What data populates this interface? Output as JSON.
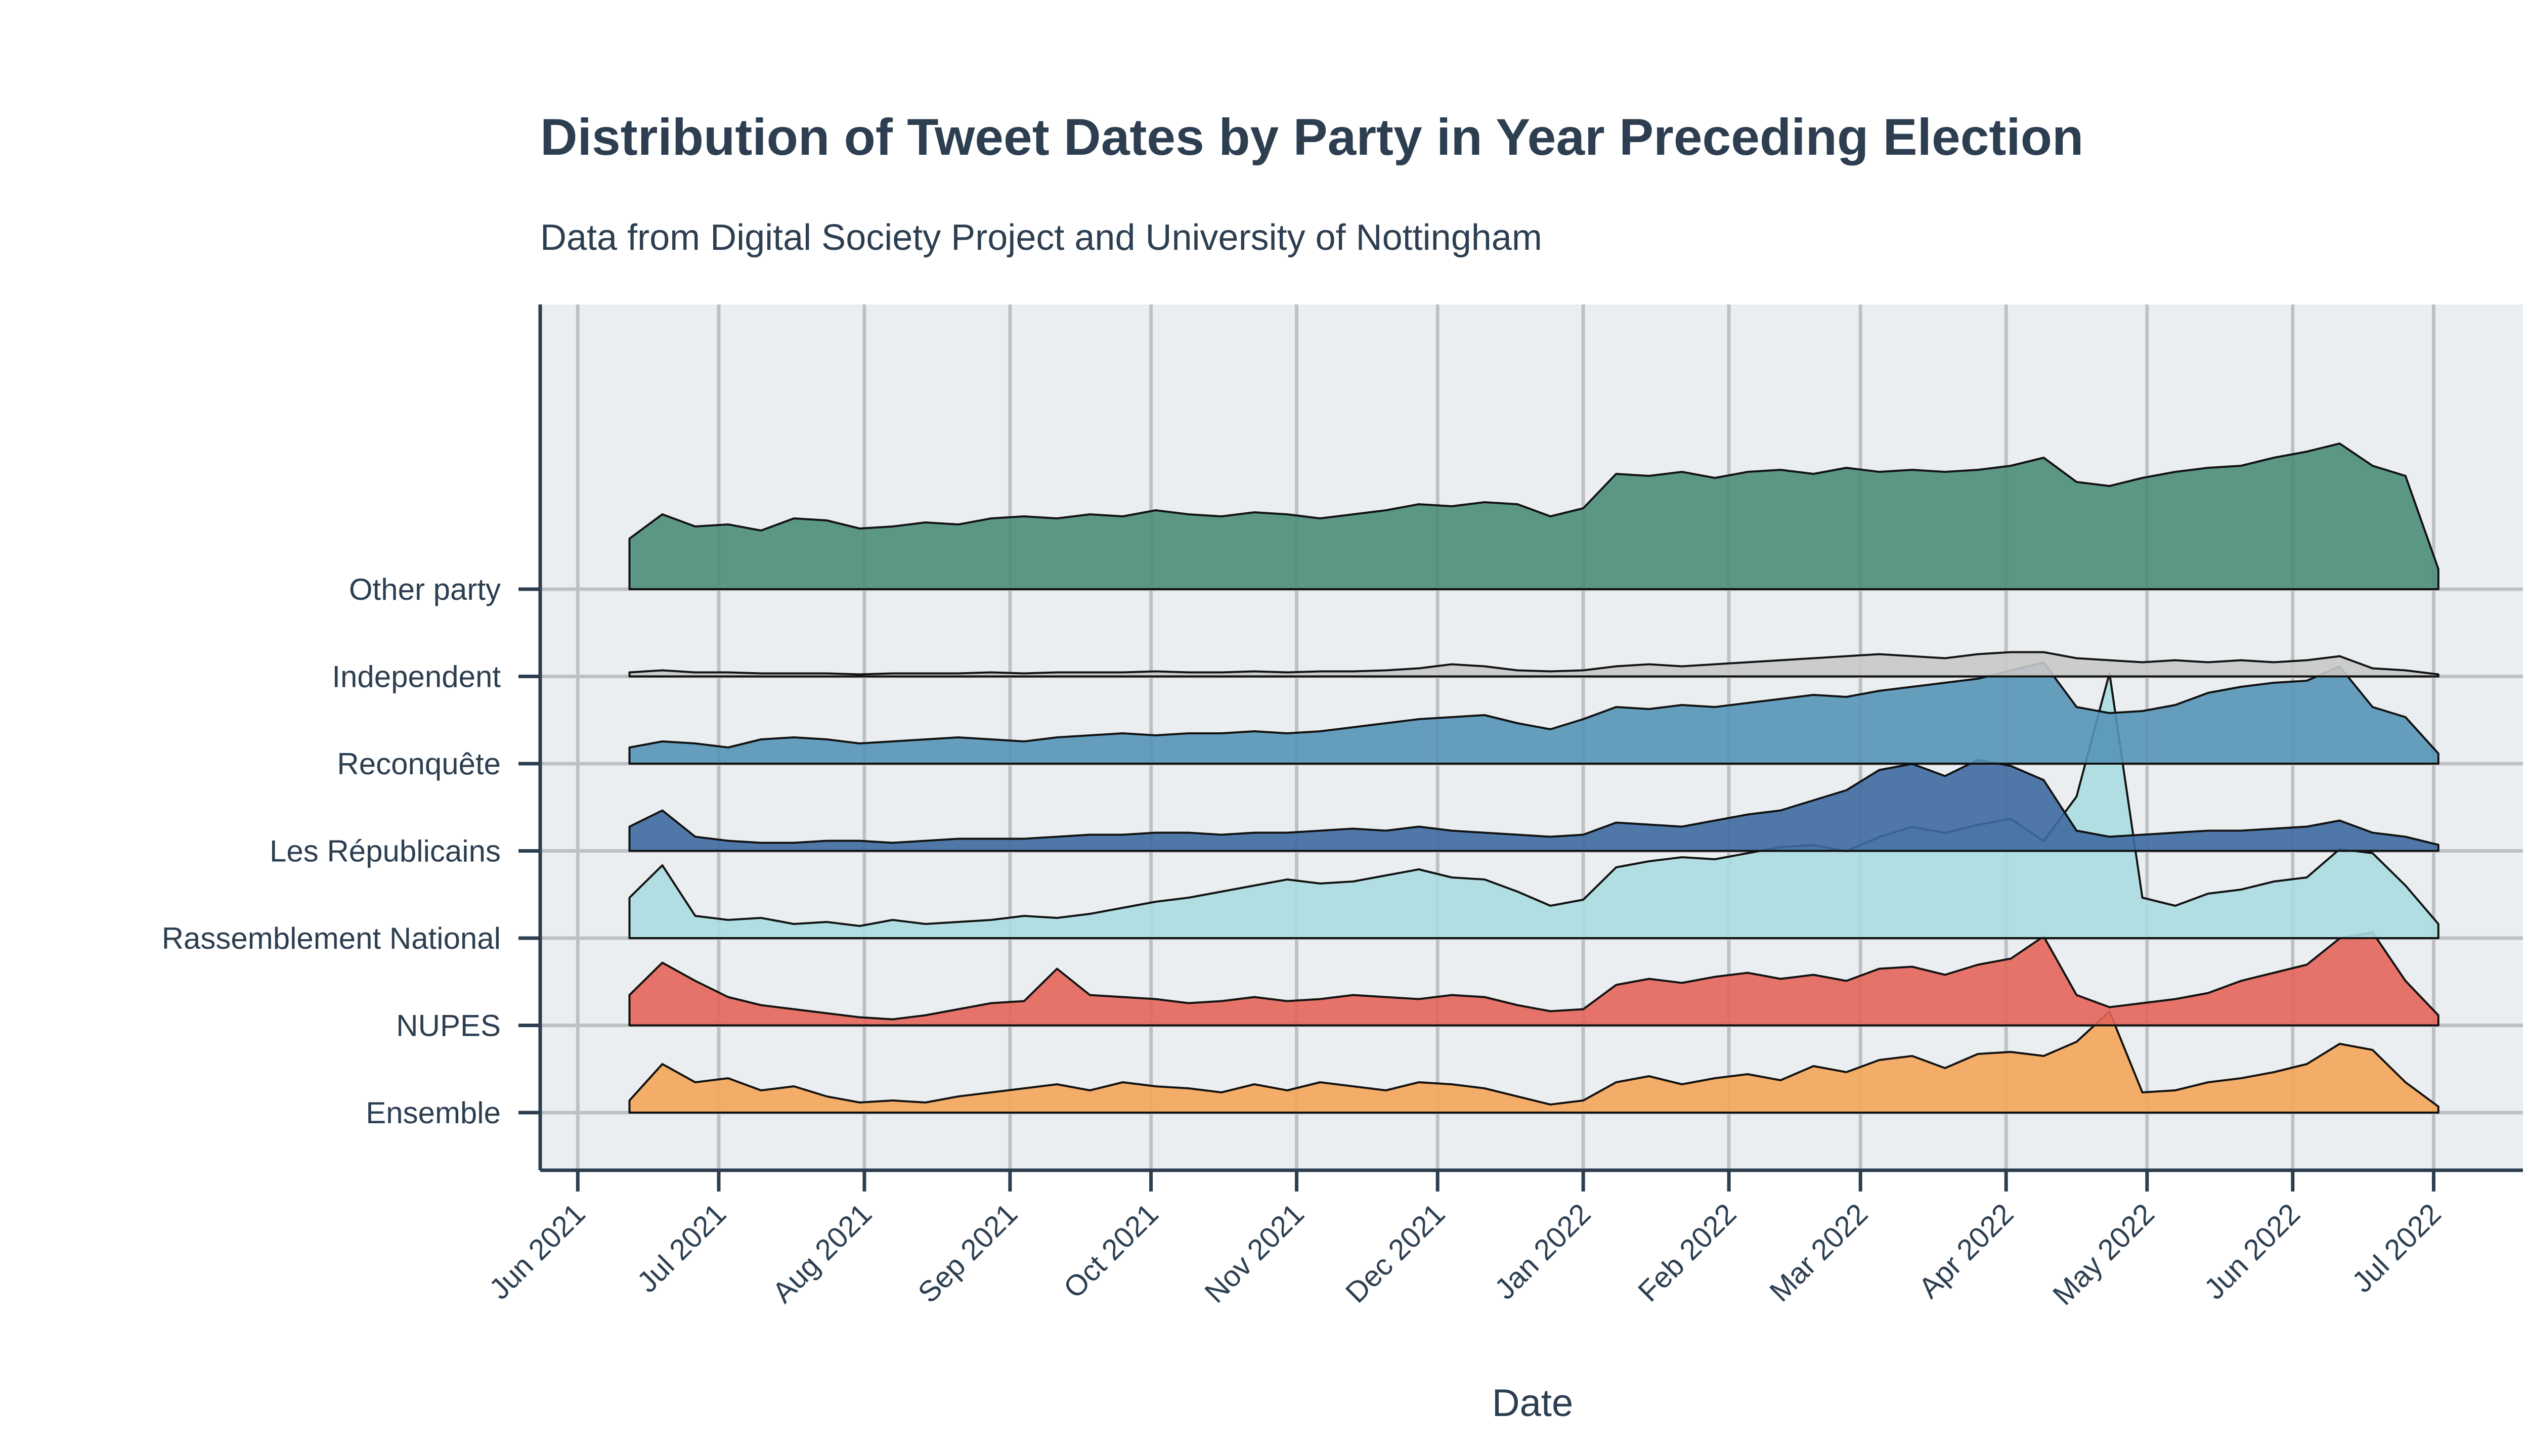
{
  "chart_data": {
    "type": "area",
    "subtype": "ridgeline",
    "title": "Distribution of Tweet Dates by Party in Year Preceding Election",
    "subtitle": "Data from Digital Society Project and University of Nottingham",
    "xlabel": "Date",
    "ylabel": "",
    "xlim": [
      "2021-05-24",
      "2022-07-20"
    ],
    "x_ticks": [
      "2021-06-01",
      "2021-07-01",
      "2021-08-01",
      "2021-09-01",
      "2021-10-01",
      "2021-11-01",
      "2021-12-01",
      "2022-01-01",
      "2022-02-01",
      "2022-03-01",
      "2022-04-01",
      "2022-05-01",
      "2022-06-01",
      "2022-07-01"
    ],
    "x_tick_labels": [
      "Jun 2021",
      "Jul 2021",
      "Aug 2021",
      "Sep 2021",
      "Oct 2021",
      "Nov 2021",
      "Dec 2021",
      "Jan 2022",
      "Feb 2022",
      "Mar 2022",
      "Apr 2022",
      "May 2022",
      "Jun 2022",
      "Jul 2022"
    ],
    "x": [
      "2021-06-12",
      "2021-06-19",
      "2021-06-26",
      "2021-07-03",
      "2021-07-10",
      "2021-07-17",
      "2021-07-24",
      "2021-07-31",
      "2021-08-07",
      "2021-08-14",
      "2021-08-21",
      "2021-08-28",
      "2021-09-04",
      "2021-09-11",
      "2021-09-18",
      "2021-09-25",
      "2021-10-02",
      "2021-10-09",
      "2021-10-16",
      "2021-10-23",
      "2021-10-30",
      "2021-11-06",
      "2021-11-13",
      "2021-11-20",
      "2021-11-27",
      "2021-12-04",
      "2021-12-11",
      "2021-12-18",
      "2021-12-25",
      "2022-01-01",
      "2022-01-08",
      "2022-01-15",
      "2022-01-22",
      "2022-01-29",
      "2022-02-05",
      "2022-02-12",
      "2022-02-19",
      "2022-02-26",
      "2022-03-05",
      "2022-03-12",
      "2022-03-19",
      "2022-03-26",
      "2022-04-02",
      "2022-04-09",
      "2022-04-16",
      "2022-04-23",
      "2022-04-30",
      "2022-05-07",
      "2022-05-14",
      "2022-05-21",
      "2022-05-28",
      "2022-06-04",
      "2022-06-11",
      "2022-06-18",
      "2022-06-25",
      "2022-07-02"
    ],
    "value_unit": "density (relative scale)",
    "series": [
      {
        "name": "Ensemble",
        "color": "#f5a55a",
        "values": [
          0.12,
          0.48,
          0.3,
          0.34,
          0.22,
          0.26,
          0.16,
          0.1,
          0.12,
          0.1,
          0.16,
          0.2,
          0.24,
          0.28,
          0.22,
          0.3,
          0.26,
          0.24,
          0.2,
          0.28,
          0.22,
          0.3,
          0.26,
          0.22,
          0.3,
          0.28,
          0.24,
          0.16,
          0.08,
          0.12,
          0.3,
          0.36,
          0.28,
          0.34,
          0.38,
          0.32,
          0.46,
          0.4,
          0.52,
          0.56,
          0.44,
          0.58,
          0.6,
          0.56,
          0.7,
          1.0,
          0.2,
          0.22,
          0.3,
          0.34,
          0.4,
          0.48,
          0.68,
          0.62,
          0.3,
          0.06
        ]
      },
      {
        "name": "NUPES",
        "color": "#e4655a",
        "values": [
          0.3,
          0.62,
          0.44,
          0.28,
          0.2,
          0.16,
          0.12,
          0.08,
          0.06,
          0.1,
          0.16,
          0.22,
          0.24,
          0.56,
          0.3,
          0.28,
          0.26,
          0.22,
          0.24,
          0.28,
          0.24,
          0.26,
          0.3,
          0.28,
          0.26,
          0.3,
          0.28,
          0.2,
          0.14,
          0.16,
          0.4,
          0.46,
          0.42,
          0.48,
          0.52,
          0.46,
          0.5,
          0.44,
          0.56,
          0.58,
          0.5,
          0.6,
          0.66,
          0.88,
          0.3,
          0.18,
          0.22,
          0.26,
          0.32,
          0.44,
          0.52,
          0.6,
          0.86,
          0.92,
          0.44,
          0.1
        ]
      },
      {
        "name": "Rassemblement National",
        "color": "#aadbe0",
        "values": [
          0.4,
          0.72,
          0.22,
          0.18,
          0.2,
          0.14,
          0.16,
          0.12,
          0.18,
          0.14,
          0.16,
          0.18,
          0.22,
          0.2,
          0.24,
          0.3,
          0.36,
          0.4,
          0.46,
          0.52,
          0.58,
          0.54,
          0.56,
          0.62,
          0.68,
          0.6,
          0.58,
          0.46,
          0.32,
          0.38,
          0.7,
          0.76,
          0.8,
          0.78,
          0.84,
          0.9,
          0.92,
          0.86,
          1.0,
          1.1,
          1.04,
          1.12,
          1.18,
          0.96,
          1.4,
          2.62,
          0.4,
          0.32,
          0.44,
          0.48,
          0.56,
          0.6,
          0.88,
          0.84,
          0.52,
          0.14
        ]
      },
      {
        "name": "Les Républicains",
        "color": "#3e6aa0",
        "values": [
          0.24,
          0.4,
          0.14,
          0.1,
          0.08,
          0.08,
          0.1,
          0.1,
          0.08,
          0.1,
          0.12,
          0.12,
          0.12,
          0.14,
          0.16,
          0.16,
          0.18,
          0.18,
          0.16,
          0.18,
          0.18,
          0.2,
          0.22,
          0.2,
          0.24,
          0.2,
          0.18,
          0.16,
          0.14,
          0.16,
          0.28,
          0.26,
          0.24,
          0.3,
          0.36,
          0.4,
          0.5,
          0.6,
          0.8,
          0.86,
          0.74,
          0.9,
          0.84,
          0.7,
          0.2,
          0.14,
          0.16,
          0.18,
          0.2,
          0.2,
          0.22,
          0.24,
          0.3,
          0.18,
          0.14,
          0.06
        ]
      },
      {
        "name": "Reconquête",
        "color": "#5693b7",
        "values": [
          0.16,
          0.22,
          0.2,
          0.16,
          0.24,
          0.26,
          0.24,
          0.2,
          0.22,
          0.24,
          0.26,
          0.24,
          0.22,
          0.26,
          0.28,
          0.3,
          0.28,
          0.3,
          0.3,
          0.32,
          0.3,
          0.32,
          0.36,
          0.4,
          0.44,
          0.46,
          0.48,
          0.4,
          0.34,
          0.44,
          0.56,
          0.54,
          0.58,
          0.56,
          0.6,
          0.64,
          0.68,
          0.66,
          0.72,
          0.76,
          0.8,
          0.84,
          0.92,
          1.0,
          0.56,
          0.5,
          0.52,
          0.58,
          0.7,
          0.76,
          0.8,
          0.82,
          0.96,
          0.56,
          0.46,
          0.1
        ]
      },
      {
        "name": "Independent",
        "color": "#c8c8c8",
        "values": [
          0.04,
          0.06,
          0.04,
          0.04,
          0.03,
          0.03,
          0.03,
          0.02,
          0.03,
          0.03,
          0.03,
          0.04,
          0.03,
          0.04,
          0.04,
          0.04,
          0.05,
          0.04,
          0.04,
          0.05,
          0.04,
          0.05,
          0.05,
          0.06,
          0.08,
          0.12,
          0.1,
          0.06,
          0.05,
          0.06,
          0.1,
          0.12,
          0.1,
          0.12,
          0.14,
          0.16,
          0.18,
          0.2,
          0.22,
          0.2,
          0.18,
          0.22,
          0.24,
          0.24,
          0.18,
          0.16,
          0.14,
          0.16,
          0.14,
          0.16,
          0.14,
          0.16,
          0.2,
          0.08,
          0.06,
          0.02
        ]
      },
      {
        "name": "Other party",
        "color": "#4c8c78",
        "values": [
          0.5,
          0.74,
          0.62,
          0.64,
          0.58,
          0.7,
          0.68,
          0.6,
          0.62,
          0.66,
          0.64,
          0.7,
          0.72,
          0.7,
          0.74,
          0.72,
          0.78,
          0.74,
          0.72,
          0.76,
          0.74,
          0.7,
          0.74,
          0.78,
          0.84,
          0.82,
          0.86,
          0.84,
          0.72,
          0.8,
          1.14,
          1.12,
          1.16,
          1.1,
          1.16,
          1.18,
          1.14,
          1.2,
          1.16,
          1.18,
          1.16,
          1.18,
          1.22,
          1.3,
          1.06,
          1.02,
          1.1,
          1.16,
          1.2,
          1.22,
          1.3,
          1.36,
          1.44,
          1.22,
          1.12,
          0.2
        ]
      }
    ],
    "grid": true,
    "legend": "none"
  }
}
